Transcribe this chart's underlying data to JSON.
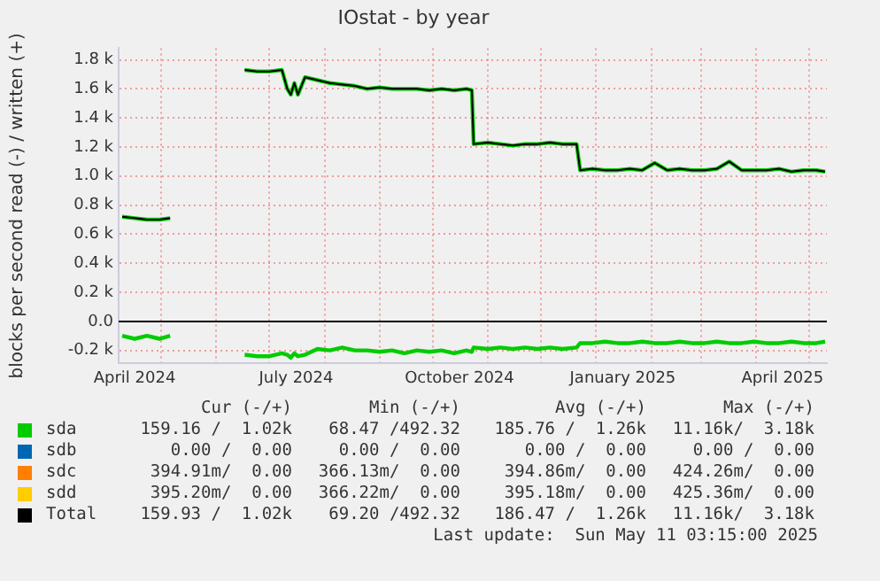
{
  "chart_data": {
    "type": "line",
    "title": "IOstat - by year",
    "ylabel": "blocks per second read (-) / written (+)",
    "x": [
      "2024-04-09",
      "2024-04-16",
      "2024-04-23",
      "2024-04-30",
      "2024-05-06",
      "2024-06-01",
      "2024-06-17",
      "2024-06-24",
      "2024-07-01",
      "2024-07-08",
      "2024-07-11",
      "2024-07-13",
      "2024-07-15",
      "2024-07-17",
      "2024-07-21",
      "2024-07-28",
      "2024-08-04",
      "2024-08-11",
      "2024-08-18",
      "2024-08-25",
      "2024-09-01",
      "2024-09-08",
      "2024-09-15",
      "2024-09-22",
      "2024-09-29",
      "2024-10-06",
      "2024-10-13",
      "2024-10-20",
      "2024-10-23",
      "2024-10-24",
      "2024-11-01",
      "2024-11-08",
      "2024-11-15",
      "2024-11-22",
      "2024-11-29",
      "2024-12-06",
      "2024-12-13",
      "2024-12-21",
      "2024-12-23",
      "2024-12-30",
      "2025-01-06",
      "2025-01-13",
      "2025-01-20",
      "2025-01-27",
      "2025-02-03",
      "2025-02-10",
      "2025-02-17",
      "2025-02-24",
      "2025-03-03",
      "2025-03-10",
      "2025-03-17",
      "2025-03-24",
      "2025-03-31",
      "2025-04-07",
      "2025-04-14",
      "2025-04-21",
      "2025-04-28",
      "2025-05-05",
      "2025-05-10"
    ],
    "series": [
      {
        "name": "sda",
        "color": "#00cc00",
        "values": [
          720,
          710,
          700,
          700,
          710,
          null,
          1730,
          1720,
          1720,
          1730,
          1600,
          1560,
          1640,
          1560,
          1680,
          1660,
          1640,
          1630,
          1620,
          1600,
          1610,
          1600,
          1600,
          1600,
          1590,
          1600,
          1590,
          1600,
          1590,
          1220,
          1230,
          1220,
          1210,
          1220,
          1220,
          1230,
          1220,
          1220,
          1040,
          1050,
          1040,
          1040,
          1050,
          1040,
          1090,
          1040,
          1050,
          1040,
          1040,
          1050,
          1100,
          1040,
          1040,
          1040,
          1050,
          1030,
          1040,
          1040,
          1030
        ]
      },
      {
        "name": "sdb",
        "color": "#0066b3",
        "values": [
          null,
          null,
          null,
          null,
          null,
          null,
          null,
          null,
          null,
          null,
          null,
          null,
          null,
          null,
          null,
          null,
          null,
          null,
          null,
          null,
          null,
          null,
          null,
          null,
          null,
          null,
          null,
          null,
          null,
          null,
          null,
          null,
          null,
          null,
          null,
          null,
          null,
          null,
          null,
          null,
          null,
          null,
          null,
          null,
          null,
          null,
          null,
          null,
          null,
          null,
          null,
          null,
          null,
          null,
          null,
          null,
          null,
          null,
          null
        ]
      },
      {
        "name": "sdc",
        "color": "#ff8000",
        "values": [
          null,
          null,
          null,
          null,
          null,
          null,
          null,
          null,
          null,
          null,
          null,
          null,
          null,
          null,
          null,
          null,
          null,
          null,
          null,
          null,
          null,
          null,
          null,
          null,
          null,
          null,
          null,
          null,
          null,
          null,
          null,
          null,
          null,
          null,
          null,
          null,
          null,
          null,
          null,
          null,
          null,
          null,
          null,
          null,
          null,
          null,
          null,
          null,
          null,
          null,
          null,
          null,
          null,
          null,
          null,
          null,
          null,
          null,
          null
        ]
      },
      {
        "name": "sdd",
        "color": "#ffcc00",
        "values": [
          null,
          null,
          null,
          null,
          null,
          null,
          null,
          null,
          null,
          null,
          null,
          null,
          null,
          null,
          null,
          null,
          null,
          null,
          null,
          null,
          null,
          null,
          null,
          null,
          null,
          null,
          null,
          null,
          null,
          null,
          null,
          null,
          null,
          null,
          null,
          null,
          null,
          null,
          null,
          null,
          null,
          null,
          null,
          null,
          null,
          null,
          null,
          null,
          null,
          null,
          null,
          null,
          null,
          null,
          null,
          null,
          null,
          null,
          null
        ]
      },
      {
        "name": "Total",
        "color": "#000000",
        "values": [
          720,
          710,
          700,
          700,
          710,
          null,
          1730,
          1720,
          1720,
          1730,
          1600,
          1560,
          1640,
          1560,
          1680,
          1660,
          1640,
          1630,
          1620,
          1600,
          1610,
          1600,
          1600,
          1600,
          1590,
          1600,
          1590,
          1600,
          1590,
          1220,
          1230,
          1220,
          1210,
          1220,
          1220,
          1230,
          1220,
          1220,
          1040,
          1050,
          1040,
          1040,
          1050,
          1040,
          1090,
          1040,
          1050,
          1040,
          1040,
          1050,
          1100,
          1040,
          1040,
          1040,
          1050,
          1030,
          1040,
          1040,
          1030
        ]
      },
      {
        "color": "#00cc00",
        "values": [
          -100,
          -120,
          -100,
          -120,
          -100,
          null,
          -230,
          -240,
          -240,
          -220,
          -230,
          -250,
          -220,
          -240,
          -230,
          -190,
          -200,
          -180,
          -200,
          -200,
          -210,
          -200,
          -220,
          -200,
          -210,
          -200,
          -220,
          -200,
          -210,
          -180,
          -190,
          -180,
          -190,
          -180,
          -190,
          -180,
          -190,
          -180,
          -150,
          -150,
          -140,
          -150,
          -150,
          -140,
          -150,
          -150,
          -140,
          -150,
          -150,
          -140,
          -150,
          -150,
          -140,
          -150,
          -150,
          -140,
          -150,
          -150,
          -140
        ]
      }
    ],
    "xlim": [
      "2024-04-07",
      "2025-05-11"
    ],
    "xticks": [
      {
        "value": "2024-05-01",
        "label": null
      },
      {
        "value": "2024-06-01",
        "label": null
      },
      {
        "value": "2024-07-01",
        "label": null
      },
      {
        "value": "2024-08-01",
        "label": null
      },
      {
        "value": "2024-09-01",
        "label": null
      },
      {
        "value": "2024-10-01",
        "label": null
      },
      {
        "value": "2024-11-01",
        "label": null
      },
      {
        "value": "2024-12-01",
        "label": null
      },
      {
        "value": "2025-01-01",
        "label": null
      },
      {
        "value": "2025-02-01",
        "label": null
      },
      {
        "value": "2025-03-01",
        "label": null
      },
      {
        "value": "2025-04-01",
        "label": null
      },
      {
        "value": "2025-05-01",
        "label": null
      },
      {
        "value": "2024-04-16",
        "label": "April 2024"
      },
      {
        "value": "2024-07-16",
        "label": "July 2024"
      },
      {
        "value": "2024-10-16",
        "label": "October 2024"
      },
      {
        "value": "2025-01-16",
        "label": "January 2025"
      },
      {
        "value": "2025-04-16",
        "label": "April 2025"
      }
    ],
    "ylim": [
      -290,
      1880
    ],
    "yticks": [
      {
        "value": -200,
        "label": "-0.2 k"
      },
      {
        "value": 0,
        "label": "0.0"
      },
      {
        "value": 200,
        "label": "0.2 k"
      },
      {
        "value": 400,
        "label": "0.4 k"
      },
      {
        "value": 600,
        "label": "0.6 k"
      },
      {
        "value": 800,
        "label": "0.8 k"
      },
      {
        "value": 1000,
        "label": "1.0 k"
      },
      {
        "value": 1200,
        "label": "1.2 k"
      },
      {
        "value": 1400,
        "label": "1.4 k"
      },
      {
        "value": 1600,
        "label": "1.6 k"
      },
      {
        "value": 1800,
        "label": "1.8 k"
      }
    ],
    "ref_lines": [
      {
        "axis": "y",
        "value": 0,
        "color": "#000000"
      }
    ],
    "grid": true,
    "legend": "bottom",
    "marker": "none",
    "line_style": "solid",
    "annotations": [
      "Cur (-/+)",
      "Min (-/+)",
      "Avg (-/+)",
      "Max (-/+)",
      "159.16 /  1.02k",
      "68.47 /492.32",
      "185.76 /  1.26k",
      "11.16k/  3.18k",
      "0.00 /  0.00",
      "0.00 /  0.00",
      "0.00 /  0.00",
      "0.00 /  0.00",
      "394.91m/  0.00",
      "366.13m/  0.00",
      "394.86m/  0.00",
      "424.26m/  0.00",
      "395.20m/  0.00",
      "366.22m/  0.00",
      "395.18m/  0.00",
      "425.36m/  0.00",
      "159.93 /  1.02k",
      "69.20 /492.32",
      "186.47 /  1.26k",
      "11.16k/  3.18k",
      "Last update:  Sun May 11 03:15:00 2025"
    ]
  }
}
